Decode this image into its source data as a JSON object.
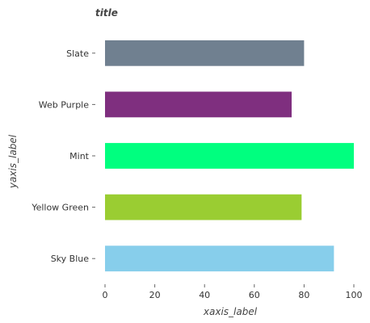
{
  "chart_data": {
    "type": "bar",
    "orientation": "horizontal",
    "title": "title",
    "xlabel": "xaxis_label",
    "ylabel": "yaxis_label",
    "xlim": [
      0,
      100
    ],
    "xticks": [
      0,
      20,
      40,
      60,
      80,
      100
    ],
    "categories": [
      "Sky Blue",
      "Yellow Green",
      "Mint",
      "Web Purple",
      "Slate"
    ],
    "values": [
      92,
      79,
      100,
      75,
      80
    ],
    "colors": [
      "#87ceeb",
      "#9acd32",
      "#00ff7f",
      "#7f2f7f",
      "#708090"
    ],
    "grid": false,
    "legend": "none"
  }
}
